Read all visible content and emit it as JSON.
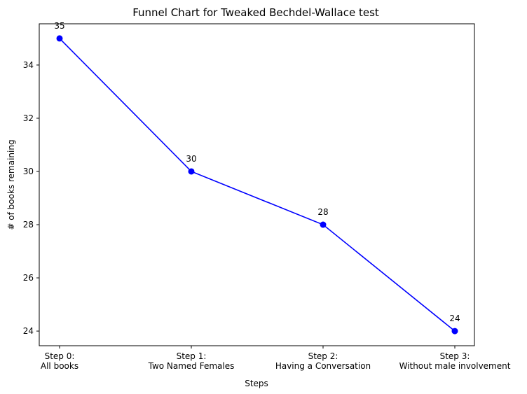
{
  "chart_data": {
    "type": "line",
    "title": "Funnel Chart for Tweaked Bechdel-Wallace test",
    "xlabel": "Steps",
    "ylabel": "# of books remaining",
    "categories": [
      [
        "Step 0:",
        "All books"
      ],
      [
        "Step 1:",
        "Two Named Females"
      ],
      [
        "Step 2:",
        "Having a Conversation"
      ],
      [
        "Step 3:",
        "Without male involvement"
      ]
    ],
    "values": [
      35,
      30,
      28,
      24
    ],
    "data_labels": [
      "35",
      "30",
      "28",
      "24"
    ],
    "yticks": [
      24,
      26,
      28,
      30,
      32,
      34
    ],
    "ylim": [
      23.45,
      35.55
    ],
    "grid": false,
    "marker": "circle",
    "color": "#0000ff"
  }
}
